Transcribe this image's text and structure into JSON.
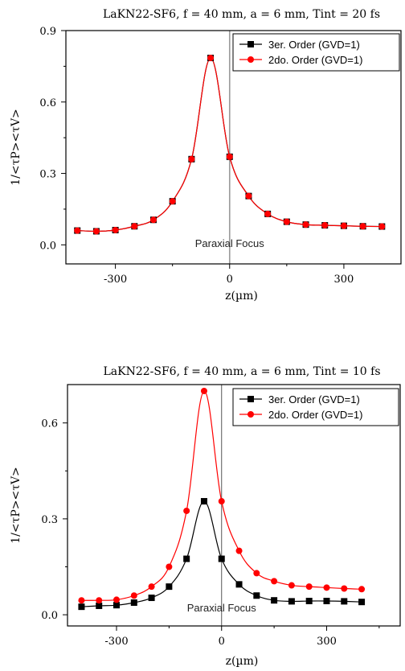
{
  "chart_data": [
    {
      "type": "line",
      "title": "LaKN22-SF6, f = 40 mm, a = 6 mm, Tint = 20 fs",
      "xlabel": "z(µm)",
      "ylabel": "1/<τP><τV>",
      "xlim": [
        -430,
        450
      ],
      "ylim": [
        -0.08,
        0.9
      ],
      "xticks": [
        -300,
        0,
        300
      ],
      "yticks": [
        0.0,
        0.3,
        0.6,
        0.9
      ],
      "ytick_labels": [
        "0.0",
        "0.3",
        "0.6",
        "0.9"
      ],
      "xtick_labels": [
        "-300",
        "0",
        "300"
      ],
      "annotation": "Paraxial Focus",
      "legend_position": "top-right",
      "series": [
        {
          "name": "3er. Order (GVD=1)",
          "color": "#000000",
          "marker": "square",
          "x": [
            -400,
            -350,
            -300,
            -250,
            -200,
            -150,
            -100,
            -50,
            0,
            50,
            100,
            150,
            200,
            250,
            300,
            350,
            400
          ],
          "y": [
            0.06,
            0.057,
            0.062,
            0.078,
            0.105,
            0.183,
            0.36,
            0.785,
            0.37,
            0.205,
            0.13,
            0.097,
            0.085,
            0.082,
            0.08,
            0.078,
            0.077
          ]
        },
        {
          "name": "2do. Order (GVD=1)",
          "color": "#ff0000",
          "marker": "circle",
          "x": [
            -400,
            -350,
            -300,
            -250,
            -200,
            -150,
            -100,
            -50,
            0,
            50,
            100,
            150,
            200,
            250,
            300,
            350,
            400
          ],
          "y": [
            0.06,
            0.057,
            0.062,
            0.078,
            0.105,
            0.183,
            0.36,
            0.785,
            0.37,
            0.205,
            0.13,
            0.097,
            0.085,
            0.082,
            0.08,
            0.078,
            0.077
          ]
        }
      ]
    },
    {
      "type": "line",
      "title": "LaKN22-SF6, f = 40 mm, a = 6 mm, Tint = 10 fs",
      "xlabel": "z(µm)",
      "ylabel": "1/<τP><τV>",
      "xlim": [
        -440,
        510
      ],
      "ylim": [
        -0.035,
        0.72
      ],
      "xticks": [
        -300,
        0,
        300
      ],
      "yticks": [
        0.0,
        0.3,
        0.6
      ],
      "ytick_labels": [
        "0.0",
        "0.3",
        "0.6"
      ],
      "xtick_labels": [
        "-300",
        "0",
        "300"
      ],
      "annotation": "Paraxial Focus",
      "legend_position": "top-right",
      "series": [
        {
          "name": "3er. Order (GVD=1)",
          "color": "#000000",
          "marker": "square",
          "x": [
            -400,
            -350,
            -300,
            -250,
            -200,
            -150,
            -100,
            -50,
            0,
            50,
            100,
            150,
            200,
            250,
            300,
            350,
            400
          ],
          "y": [
            0.025,
            0.028,
            0.03,
            0.038,
            0.053,
            0.088,
            0.175,
            0.355,
            0.175,
            0.095,
            0.06,
            0.045,
            0.042,
            0.043,
            0.043,
            0.042,
            0.04
          ]
        },
        {
          "name": "2do. Order (GVD=1)",
          "color": "#ff0000",
          "marker": "circle",
          "x": [
            -400,
            -350,
            -300,
            -250,
            -200,
            -150,
            -100,
            -50,
            0,
            50,
            100,
            150,
            200,
            250,
            300,
            350,
            400
          ],
          "y": [
            0.045,
            0.045,
            0.047,
            0.06,
            0.088,
            0.15,
            0.325,
            0.7,
            0.355,
            0.2,
            0.13,
            0.105,
            0.092,
            0.088,
            0.085,
            0.082,
            0.08
          ]
        }
      ]
    }
  ]
}
